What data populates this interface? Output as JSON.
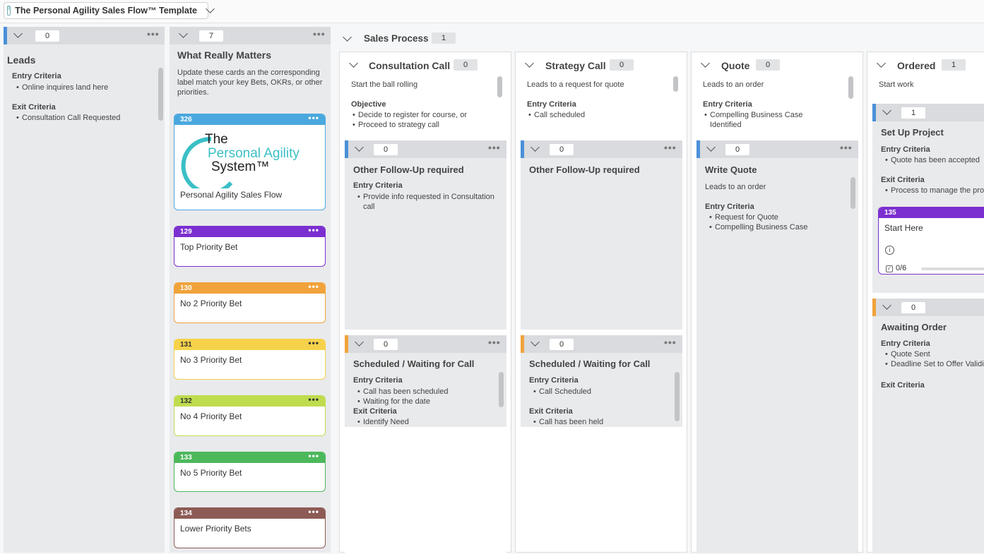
{
  "board": {
    "title": "The Personal Agility Sales Flow™ Template"
  },
  "leads": {
    "count": "0",
    "title": "Leads",
    "entry_label": "Entry Criteria",
    "entry_items": [
      "Online inquires land here"
    ],
    "exit_label": "Exit Criteria",
    "exit_items": [
      "Consultation Call Requested"
    ]
  },
  "matters": {
    "count": "7",
    "title": "What Really Matters",
    "desc": "Update these cards an the corresponding label match your key Bets, OKRs, or other priorities.",
    "cards": [
      {
        "id": "326",
        "title": "Personal Agility Sales Flow",
        "color": "#4aa8de",
        "logo": {
          "line1": "The",
          "line2": "Personal Agility",
          "line3": "System™"
        }
      },
      {
        "id": "129",
        "title": "Top Priority Bet",
        "color": "#7b2fd0"
      },
      {
        "id": "130",
        "title": "No 2 Priority Bet",
        "color": "#f0a33b"
      },
      {
        "id": "131",
        "title": "No 3 Priority Bet",
        "color": "#f6d24a"
      },
      {
        "id": "132",
        "title": "No 4 Priority Bet",
        "color": "#bfdc4f"
      },
      {
        "id": "133",
        "title": "No 5 Priority Bet",
        "color": "#4cb85c"
      },
      {
        "id": "134",
        "title": "Lower Priority Bets",
        "color": "#8d5b56"
      }
    ]
  },
  "sales": {
    "title": "Sales Process",
    "count": "1",
    "consultation": {
      "title": "Consultation Call",
      "count": "0",
      "desc": "Start the ball rolling",
      "objective_label": "Objective",
      "objective_items": [
        "Decide to register for course, or",
        "Proceed to strategy call"
      ],
      "followup": {
        "count": "0",
        "title": "Other Follow-Up required",
        "entry_label": "Entry Criteria",
        "entry_items": [
          "Provide info requested in Consultation call"
        ]
      },
      "scheduled": {
        "count": "0",
        "title": "Scheduled / Waiting for Call",
        "entry_label": "Entry Criteria",
        "entry_items": [
          "Call has been scheduled",
          "Waiting for the date"
        ],
        "exit_label": "Exit Criteria",
        "exit_items": [
          "Identify Need"
        ]
      }
    },
    "strategy": {
      "title": "Strategy Call",
      "count": "0",
      "desc": "Leads to a request for quote",
      "entry_label": "Entry Criteria",
      "entry_items": [
        "Call scheduled"
      ],
      "followup": {
        "count": "0",
        "title": "Other Follow-Up required"
      },
      "scheduled": {
        "count": "0",
        "title": "Scheduled / Waiting for Call",
        "entry_label": "Entry Criteria",
        "entry_items": [
          "Call Scheduled"
        ],
        "exit_label": "Exit Criteria",
        "exit_items": [
          "Call has been held"
        ]
      }
    },
    "quote": {
      "title": "Quote",
      "count": "0",
      "desc": "Leads to an order",
      "entry_label": "Entry Criteria",
      "entry_items": [
        "Compelling Business Case Identified"
      ],
      "write": {
        "count": "0",
        "title": "Write Quote",
        "desc": "Leads to an order",
        "entry_label": "Entry Criteria",
        "entry_items": [
          "Request for Quote",
          "Compelling Business Case"
        ]
      }
    },
    "ordered": {
      "title": "Ordered",
      "count": "1",
      "desc": "Start work",
      "setup": {
        "count": "1",
        "title": "Set Up Project",
        "entry_label": "Entry Criteria",
        "entry_items": [
          "Quote has been accepted"
        ],
        "exit_label": "Exit Criteria",
        "exit_items": [
          "Process to manage the pro"
        ],
        "card": {
          "id": "135",
          "title": "Start Here",
          "checklist": "0/6",
          "progress": 0,
          "color": "#7b2fd0"
        }
      },
      "awaiting": {
        "count": "0",
        "title": "Awaiting Order",
        "entry_label": "Entry Criteria",
        "entry_items": [
          "Quote Sent",
          "Deadline Set to Offer Validi"
        ],
        "exit_label": "Exit Criteria"
      }
    }
  },
  "colors": {
    "blue": "#4a90d9",
    "orange": "#f0a33b",
    "purple": "#7b2fd0"
  }
}
